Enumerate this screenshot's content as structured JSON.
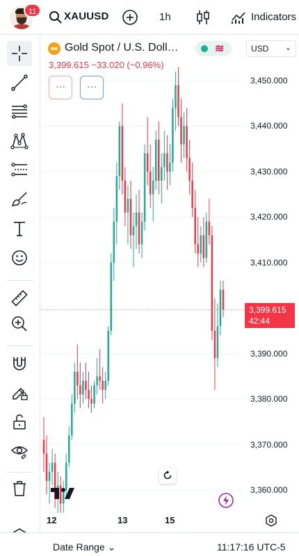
{
  "header": {
    "notification_count": "11",
    "symbol": "XAUUSD",
    "interval": "1h",
    "indicators_label": "Indicators"
  },
  "legend": {
    "title": "Gold Spot / U.S. Doll…",
    "values": "3,399.615 −33.020 (−0.96%)",
    "currency": "USD",
    "indicator_button_1": "···",
    "indicator_button_2": "···"
  },
  "colors": {
    "up": "#22ab94",
    "down": "#f23645",
    "accent": "#2962ff"
  },
  "chart_data": {
    "type": "candlestick",
    "symbol": "XAUUSD",
    "interval": "1h",
    "y_ticks": [
      "3,450.000",
      "3,440.000",
      "3,430.000",
      "3,420.000",
      "3,410.000",
      "3,390.000",
      "3,380.000",
      "3,370.000",
      "3,360.000"
    ],
    "ylim": [
      3354,
      3455
    ],
    "x_ticks": [
      "12",
      "13",
      "15"
    ],
    "last_price": "3,399.615",
    "countdown": "42:44",
    "candles": [
      [
        3371,
        3376,
        3364,
        3368
      ],
      [
        3368,
        3372,
        3359,
        3362
      ],
      [
        3362,
        3366,
        3357,
        3364
      ],
      [
        3364,
        3369,
        3361,
        3366
      ],
      [
        3366,
        3368,
        3356,
        3358
      ],
      [
        3358,
        3364,
        3355,
        3361
      ],
      [
        3361,
        3363,
        3355,
        3357
      ],
      [
        3357,
        3362,
        3355,
        3360
      ],
      [
        3360,
        3368,
        3358,
        3366
      ],
      [
        3366,
        3374,
        3365,
        3372
      ],
      [
        3372,
        3381,
        3371,
        3379
      ],
      [
        3379,
        3388,
        3377,
        3386
      ],
      [
        3386,
        3392,
        3380,
        3383
      ],
      [
        3383,
        3388,
        3378,
        3381
      ],
      [
        3381,
        3386,
        3379,
        3384
      ],
      [
        3384,
        3388,
        3380,
        3382
      ],
      [
        3382,
        3386,
        3378,
        3380
      ],
      [
        3380,
        3383,
        3377,
        3379
      ],
      [
        3379,
        3384,
        3378,
        3383
      ],
      [
        3383,
        3389,
        3381,
        3385
      ],
      [
        3385,
        3391,
        3382,
        3384
      ],
      [
        3384,
        3387,
        3379,
        3382
      ],
      [
        3382,
        3386,
        3380,
        3384
      ],
      [
        3384,
        3396,
        3383,
        3395
      ],
      [
        3395,
        3412,
        3394,
        3410
      ],
      [
        3410,
        3422,
        3406,
        3419
      ],
      [
        3419,
        3432,
        3414,
        3429
      ],
      [
        3429,
        3441,
        3426,
        3440
      ],
      [
        3440,
        3445,
        3425,
        3428
      ],
      [
        3428,
        3431,
        3418,
        3421
      ],
      [
        3421,
        3427,
        3414,
        3424
      ],
      [
        3424,
        3428,
        3413,
        3416
      ],
      [
        3416,
        3421,
        3409,
        3418
      ],
      [
        3418,
        3425,
        3413,
        3421
      ],
      [
        3421,
        3426,
        3412,
        3414
      ],
      [
        3414,
        3421,
        3411,
        3419
      ],
      [
        3419,
        3436,
        3417,
        3434
      ],
      [
        3434,
        3442,
        3427,
        3430
      ],
      [
        3430,
        3436,
        3422,
        3425
      ],
      [
        3425,
        3431,
        3419,
        3428
      ],
      [
        3428,
        3439,
        3426,
        3437
      ],
      [
        3437,
        3441,
        3425,
        3428
      ],
      [
        3428,
        3434,
        3423,
        3431
      ],
      [
        3431,
        3439,
        3428,
        3434
      ],
      [
        3434,
        3438,
        3426,
        3430
      ],
      [
        3430,
        3436,
        3427,
        3432
      ],
      [
        3432,
        3446,
        3430,
        3444
      ],
      [
        3444,
        3452,
        3439,
        3449
      ],
      [
        3449,
        3453,
        3440,
        3442
      ],
      [
        3442,
        3446,
        3432,
        3436
      ],
      [
        3436,
        3443,
        3433,
        3440
      ],
      [
        3440,
        3444,
        3430,
        3433
      ],
      [
        3433,
        3437,
        3425,
        3428
      ],
      [
        3428,
        3432,
        3420,
        3422
      ],
      [
        3422,
        3426,
        3412,
        3414
      ],
      [
        3414,
        3420,
        3409,
        3412
      ],
      [
        3412,
        3418,
        3410,
        3416
      ],
      [
        3416,
        3420,
        3409,
        3411
      ],
      [
        3411,
        3421,
        3410,
        3419
      ],
      [
        3419,
        3424,
        3414,
        3416
      ],
      [
        3416,
        3418,
        3393,
        3395
      ],
      [
        3395,
        3402,
        3382,
        3389
      ],
      [
        3389,
        3401,
        3387,
        3396
      ],
      [
        3396,
        3406,
        3394,
        3404
      ],
      [
        3404,
        3406,
        3398,
        3399.615
      ]
    ]
  },
  "overlay": {
    "reset_title": "Reset chart"
  },
  "footer": {
    "date_range_label": "Date Range",
    "clock": "11:17:16 UTC-5"
  }
}
